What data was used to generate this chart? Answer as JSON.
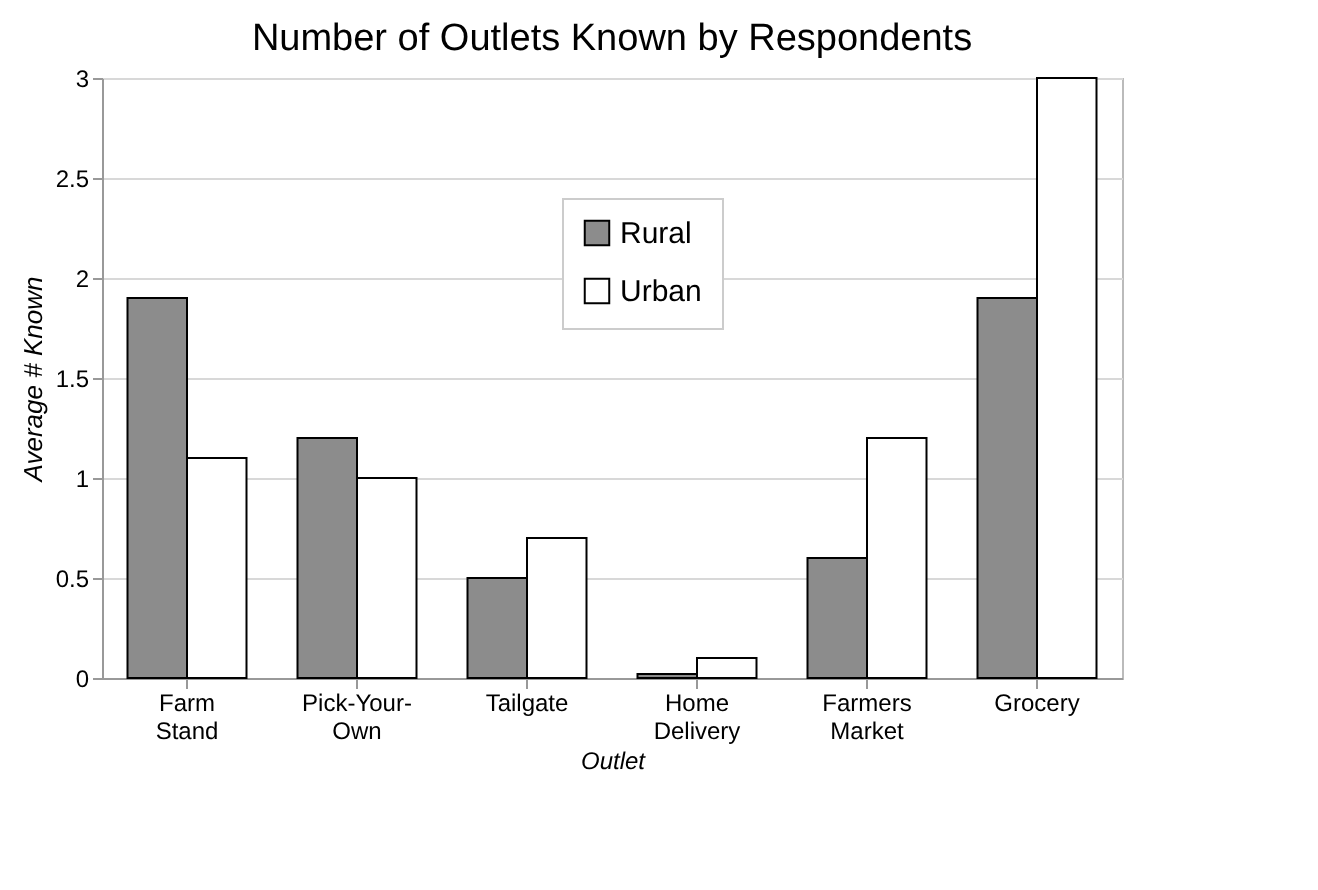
{
  "chart_data": {
    "type": "bar",
    "title": "Number of Outlets Known by Respondents",
    "xlabel": "Outlet",
    "ylabel": "Average # Known",
    "categories": [
      "Farm Stand",
      "Pick-Your-Own",
      "Tailgate",
      "Home Delivery",
      "Farmers Market",
      "Grocery"
    ],
    "series": [
      {
        "name": "Rural",
        "color": "#8c8c8c",
        "values": [
          1.9,
          1.2,
          0.5,
          0.02,
          0.6,
          1.9
        ]
      },
      {
        "name": "Urban",
        "color": "#ffffff",
        "values": [
          1.1,
          1.0,
          0.7,
          0.1,
          1.2,
          3.0
        ]
      }
    ],
    "ylim": [
      0,
      3
    ],
    "yticks": [
      0,
      0.5,
      1,
      1.5,
      2,
      2.5,
      3
    ],
    "grid": "y",
    "legend": "top"
  }
}
